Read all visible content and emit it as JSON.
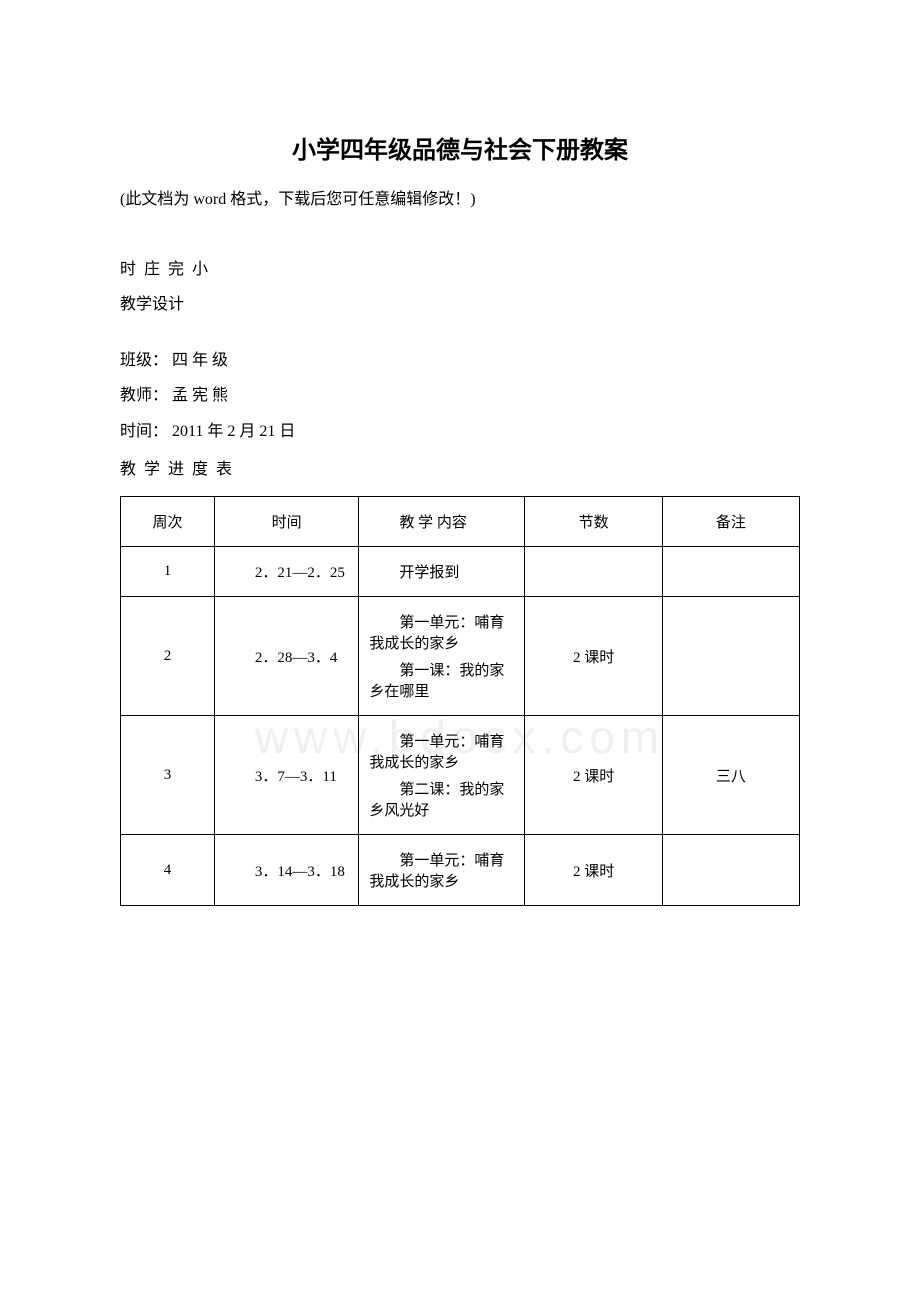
{
  "watermark": "www.bdocx.com",
  "title": "小学四年级品德与社会下册教案",
  "note": "(此文档为 word 格式，下载后您可任意编辑修改！)",
  "school": "时 庄 完 小",
  "design_label": "教学设计",
  "class_label": "班级：",
  "class_value": " 四 年 级",
  "teacher_label": "教师：",
  "teacher_value": " 孟 宪 熊",
  "date_label": "时间：",
  "date_value": " 2011 年 2 月 21 日",
  "schedule_title": "教 学 进 度 表",
  "columns": {
    "week": "周次",
    "time": "时间",
    "content": "教 学 内容",
    "periods": "节数",
    "notes": "备注"
  },
  "rows": [
    {
      "week": "1",
      "time": "2．21—2．25",
      "content_p1": "开学报到",
      "content_p2": "",
      "periods": "",
      "notes": ""
    },
    {
      "week": "2",
      "time": "2．28—3．4",
      "content_p1": "第一单元：哺育我成长的家乡",
      "content_p2": "第一课：我的家乡在哪里",
      "periods": "2 课时",
      "notes": ""
    },
    {
      "week": "3",
      "time": "3．7—3．11",
      "content_p1": "第一单元：哺育我成长的家乡",
      "content_p2": "第二课：我的家乡风光好",
      "periods": "2 课时",
      "notes": "三八"
    },
    {
      "week": "4",
      "time": "3．14—3．18",
      "content_p1": "第一单元：哺育我成长的家乡",
      "content_p2": "",
      "periods": "2 课时",
      "notes": ""
    }
  ]
}
